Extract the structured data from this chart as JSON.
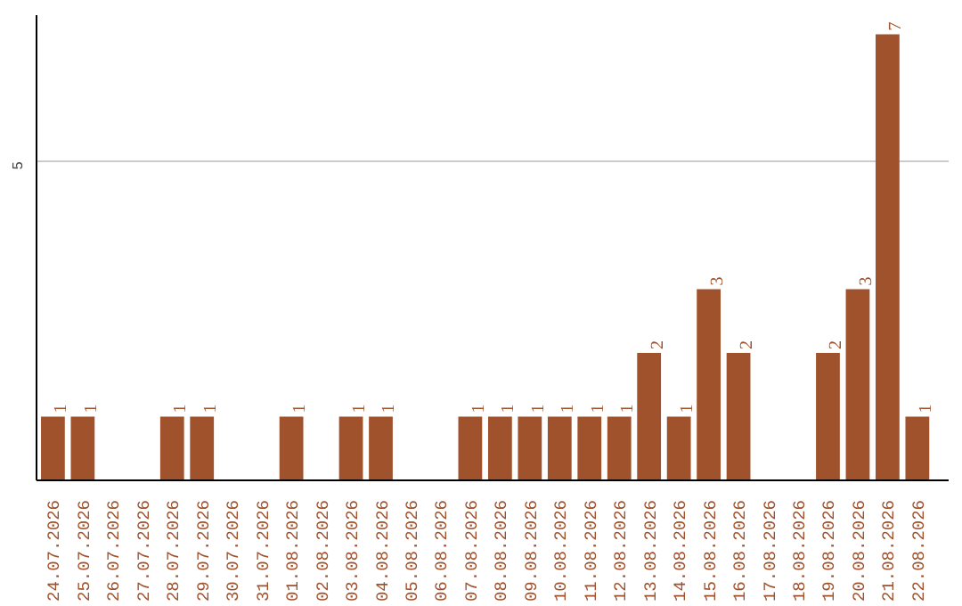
{
  "chart_data": {
    "type": "bar",
    "categories": [
      "24.07.2026",
      "25.07.2026",
      "26.07.2026",
      "27.07.2026",
      "28.07.2026",
      "29.07.2026",
      "30.07.2026",
      "31.07.2026",
      "01.08.2026",
      "02.08.2026",
      "03.08.2026",
      "04.08.2026",
      "05.08.2026",
      "06.08.2026",
      "07.08.2026",
      "08.08.2026",
      "09.08.2026",
      "10.08.2026",
      "11.08.2026",
      "12.08.2026",
      "13.08.2026",
      "14.08.2026",
      "15.08.2026",
      "16.08.2026",
      "17.08.2026",
      "18.08.2026",
      "19.08.2026",
      "20.08.2026",
      "21.08.2026",
      "22.08.2026"
    ],
    "values": [
      1,
      1,
      null,
      null,
      1,
      1,
      null,
      null,
      1,
      null,
      1,
      1,
      null,
      null,
      1,
      1,
      1,
      1,
      1,
      1,
      2,
      1,
      3,
      2,
      null,
      null,
      2,
      3,
      7,
      1
    ],
    "color": "#a0522d",
    "ylim": [
      0,
      7.3
    ],
    "yticks": [
      5
    ],
    "grid": "y",
    "data_labels": true
  }
}
